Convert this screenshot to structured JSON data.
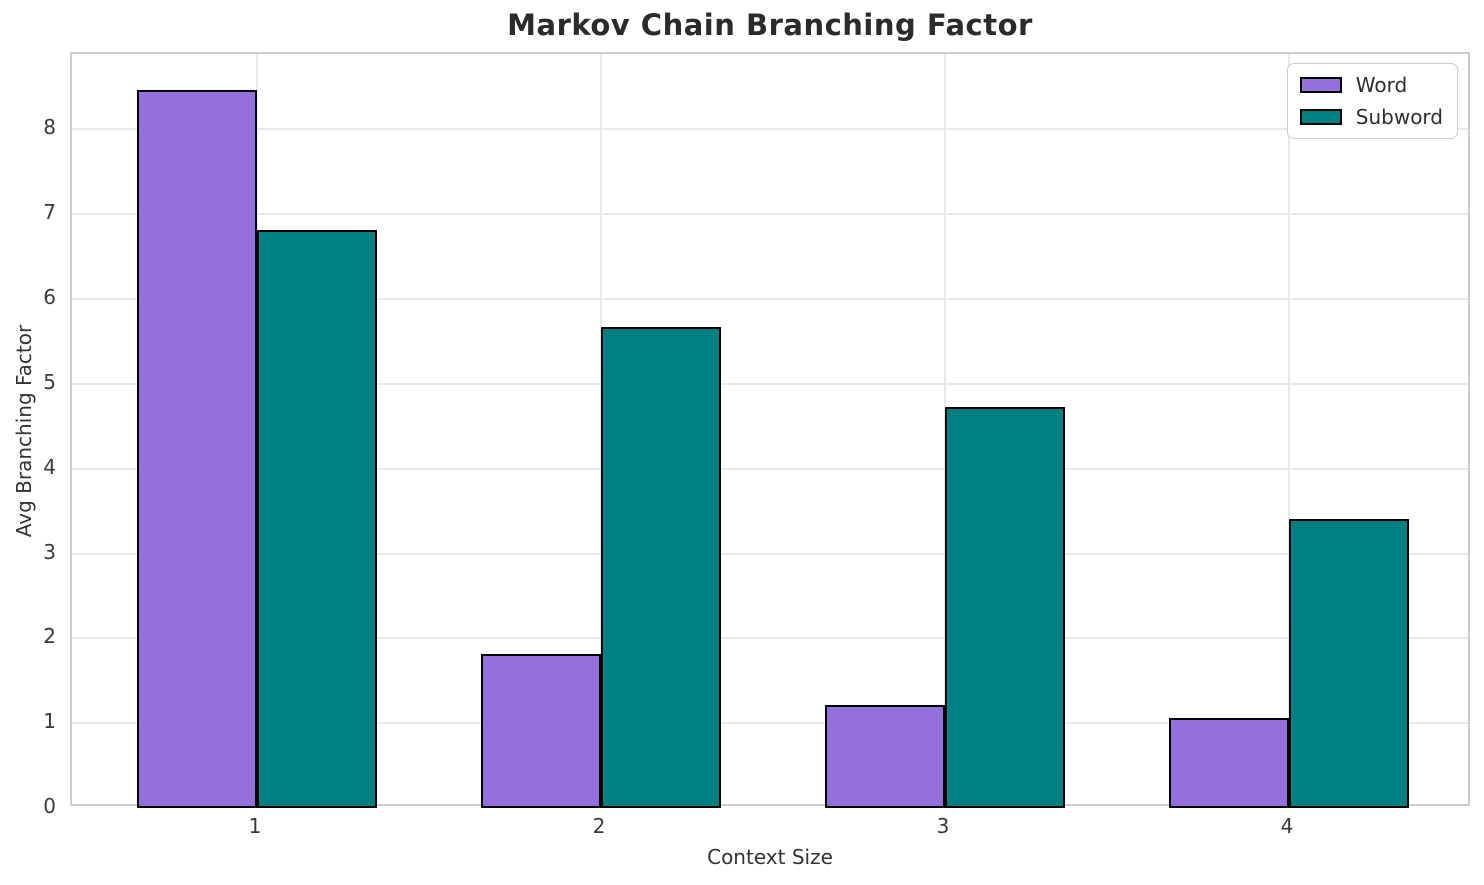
{
  "chart_data": {
    "type": "bar",
    "title": "Markov Chain Branching Factor",
    "xlabel": "Context Size",
    "ylabel": "Avg Branching Factor",
    "categories": [
      "1",
      "2",
      "3",
      "4"
    ],
    "series": [
      {
        "name": "Word",
        "color": "#9370DB",
        "values": [
          8.46,
          1.82,
          1.21,
          1.06
        ]
      },
      {
        "name": "Subword",
        "color": "#008080",
        "values": [
          6.82,
          5.67,
          4.73,
          3.41
        ]
      }
    ],
    "bar_edge_color": "#000000",
    "ylim": [
      0,
      8.89
    ],
    "yticks": [
      0,
      1,
      2,
      3,
      4,
      5,
      6,
      7,
      8
    ],
    "grid": true,
    "legend_position": "upper right"
  }
}
